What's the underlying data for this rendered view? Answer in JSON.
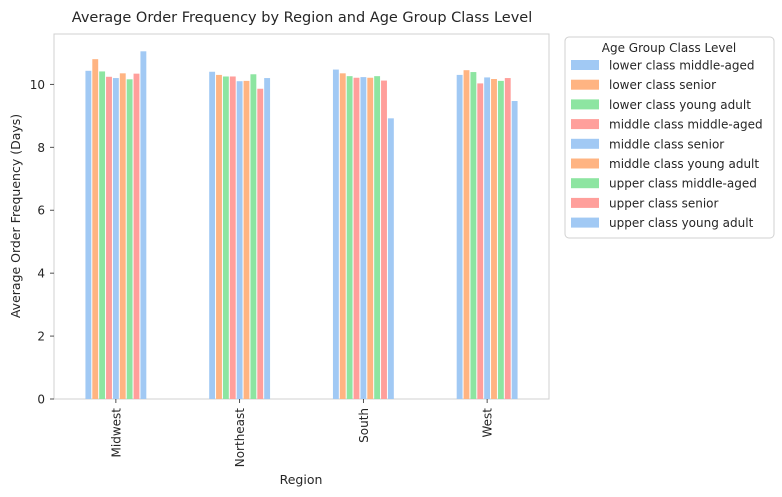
{
  "chart_data": {
    "type": "bar",
    "title": "Average Order Frequency by Region and Age Group Class Level",
    "xlabel": "Region",
    "ylabel": "Average Order Frequency (Days)",
    "ylim": [
      0,
      11.6
    ],
    "yticks": [
      0,
      2,
      4,
      6,
      8,
      10
    ],
    "ytick_labels": [
      "0",
      "2",
      "4",
      "6",
      "8",
      "10"
    ],
    "grid": false,
    "legend_title": "Age Group Class Level",
    "legend_position": "outside-right",
    "categories": [
      "Midwest",
      "Northeast",
      "South",
      "West"
    ],
    "series": [
      {
        "name": "lower class middle-aged",
        "color": "#a1c9f4",
        "values": [
          10.43,
          10.4,
          10.47,
          10.3
        ]
      },
      {
        "name": "lower class senior",
        "color": "#ffb482",
        "values": [
          10.8,
          10.3,
          10.35,
          10.45
        ]
      },
      {
        "name": "lower class young adult",
        "color": "#8de5a1",
        "values": [
          10.41,
          10.25,
          10.26,
          10.39
        ]
      },
      {
        "name": "middle class middle-aged",
        "color": "#ff9f9b",
        "values": [
          10.24,
          10.25,
          10.21,
          10.03
        ]
      },
      {
        "name": "middle class senior",
        "color": "#a1c9f4",
        "values": [
          10.2,
          10.1,
          10.23,
          10.22
        ]
      },
      {
        "name": "middle class young adult",
        "color": "#ffb482",
        "values": [
          10.35,
          10.11,
          10.21,
          10.17
        ]
      },
      {
        "name": "upper class middle-aged",
        "color": "#8de5a1",
        "values": [
          10.16,
          10.32,
          10.26,
          10.11
        ]
      },
      {
        "name": "upper class senior",
        "color": "#ff9f9b",
        "values": [
          10.34,
          9.86,
          10.12,
          10.2
        ]
      },
      {
        "name": "upper class young adult",
        "color": "#a1c9f4",
        "values": [
          11.05,
          10.2,
          8.92,
          9.47
        ]
      }
    ]
  }
}
